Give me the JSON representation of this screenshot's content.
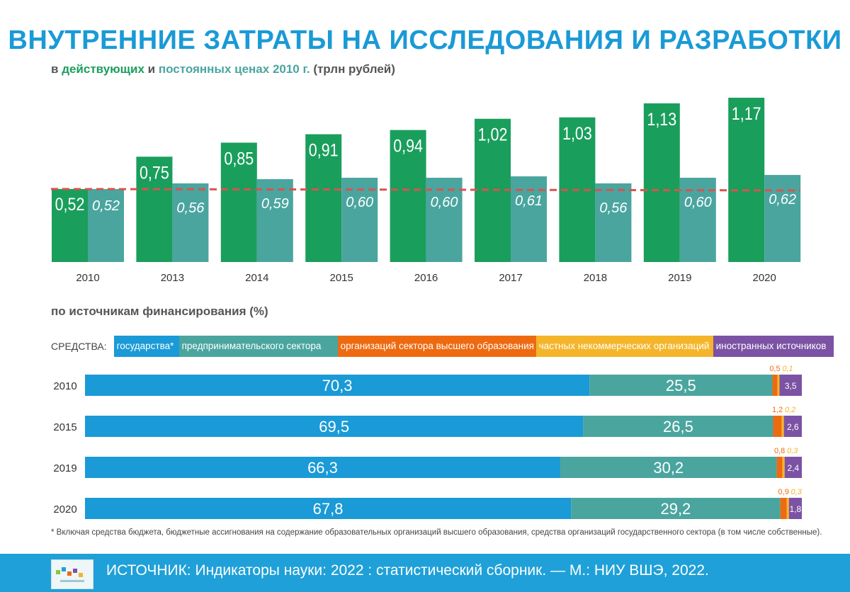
{
  "title": "ВНУТРЕННИЕ ЗАТРАТЫ НА ИССЛЕДОВАНИЯ И РАЗРАБОТКИ",
  "subtitle": {
    "prefix": "в ",
    "current": "действующих",
    "and": " и ",
    "constant": "постоянных ценах",
    "year": " 2010 г.",
    "unit": " (трлн рублей)"
  },
  "colors": {
    "current": "#1a9e5c",
    "constant": "#4aa59f",
    "baseline": "#d9534f",
    "gov": "#1a9ad6",
    "business": "#4aa59f",
    "higher_ed": "#ee6a10",
    "nonprofit": "#f4b52a",
    "foreign": "#7b52a4"
  },
  "chart_data": [
    {
      "type": "bar",
      "categories": [
        "2010",
        "2013",
        "2014",
        "2015",
        "2016",
        "2017",
        "2018",
        "2019",
        "2020"
      ],
      "series": [
        {
          "name": "в действующих ценах",
          "values": [
            0.52,
            0.75,
            0.85,
            0.91,
            0.94,
            1.02,
            1.03,
            1.13,
            1.17
          ],
          "labels": [
            "0,52",
            "0,75",
            "0,85",
            "0,91",
            "0,94",
            "1,02",
            "1,03",
            "1,13",
            "1,17"
          ]
        },
        {
          "name": "в постоянных ценах 2010 г.",
          "values": [
            0.52,
            0.56,
            0.59,
            0.6,
            0.6,
            0.61,
            0.56,
            0.6,
            0.62
          ],
          "labels": [
            "0,52",
            "0,56",
            "0,59",
            "0,60",
            "0,60",
            "0,61",
            "0,56",
            "0,60",
            "0,62"
          ]
        }
      ],
      "reference_line": 0.52,
      "ylim": [
        0,
        1.3
      ]
    },
    {
      "type": "bar",
      "stacked": true,
      "orientation": "horizontal",
      "title": "по источникам финансирования (%)",
      "legend_title": "СРЕДСТВА:",
      "categories": [
        "2010",
        "2015",
        "2019",
        "2020"
      ],
      "series": [
        {
          "name": "государства*",
          "values": [
            70.3,
            69.5,
            66.3,
            67.8
          ],
          "labels": [
            "70,3",
            "69,5",
            "66,3",
            "67,8"
          ]
        },
        {
          "name": "предпринимательского сектора",
          "values": [
            25.5,
            26.5,
            30.2,
            29.2
          ],
          "labels": [
            "25,5",
            "26,5",
            "30,2",
            "29,2"
          ]
        },
        {
          "name": "организаций сектора высшего образования",
          "values": [
            0.5,
            1.2,
            0.8,
            0.9
          ],
          "labels": [
            "0,5",
            "1,2",
            "0,8",
            "0,9"
          ]
        },
        {
          "name": "частных некоммерческих организаций",
          "values": [
            0.1,
            0.2,
            0.3,
            0.3
          ],
          "labels": [
            "0,1",
            "0,2",
            "0,3",
            "0,3"
          ]
        },
        {
          "name": "иностранных источников",
          "values": [
            3.5,
            2.6,
            2.4,
            1.8
          ],
          "labels": [
            "3,5",
            "2,6",
            "2,4",
            "1,8"
          ]
        }
      ],
      "xlim": [
        0,
        100
      ]
    }
  ],
  "footnote": "* Включая средства бюджета, бюджетные ассигнования на содержание образовательных организаций высшего образования, средства организаций государственного сектора (в том числе собственные).",
  "footer": {
    "source": "ИСТОЧНИК: Индикаторы науки: 2022 : статистический сборник. — М.: НИУ ВШЭ, 2022.",
    "logo_icon": "book-cover-icon"
  }
}
